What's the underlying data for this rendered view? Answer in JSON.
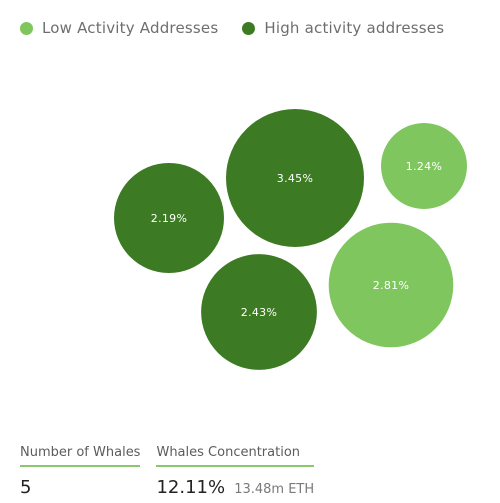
{
  "legend": {
    "items": [
      {
        "label": "Low Activity Addresses",
        "color": "#7fc65f"
      },
      {
        "label": "High activity addresses",
        "color": "#3d7a24"
      }
    ]
  },
  "chart_data": {
    "type": "bubble",
    "series": [
      {
        "name": "Low Activity Addresses",
        "color": "#7fc65f"
      },
      {
        "name": "High activity addresses",
        "color": "#3d7a24"
      }
    ],
    "bubbles": [
      {
        "label": "2.19%",
        "value": 2.19,
        "series": "High activity addresses"
      },
      {
        "label": "3.45%",
        "value": 3.45,
        "series": "High activity addresses"
      },
      {
        "label": "2.43%",
        "value": 2.43,
        "series": "High activity addresses"
      },
      {
        "label": "1.24%",
        "value": 1.24,
        "series": "Low Activity Addresses"
      },
      {
        "label": "2.81%",
        "value": 2.81,
        "series": "Low Activity Addresses"
      }
    ]
  },
  "stats": {
    "whales_count_label": "Number of Whales",
    "whales_count_value": "5",
    "concentration_label": "Whales Concentration",
    "concentration_value": "12.11%",
    "concentration_sub": "13.48m ETH"
  }
}
